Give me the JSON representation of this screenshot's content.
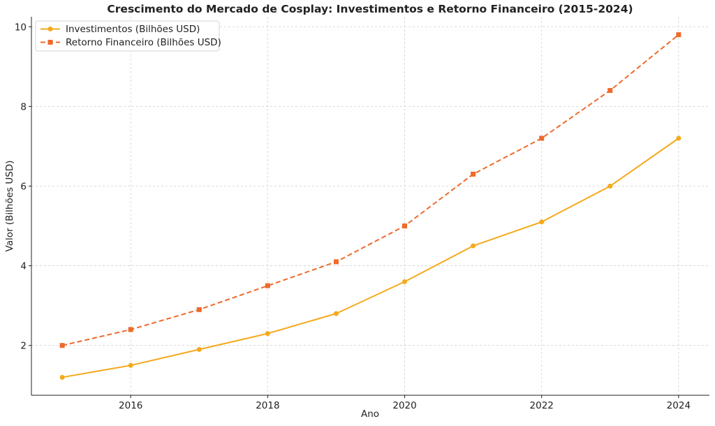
{
  "chart_data": {
    "type": "line",
    "title": "Crescimento do Mercado de Cosplay: Investimentos e Retorno Financeiro (2015-2024)",
    "xlabel": "Ano",
    "ylabel": "Valor (Bilhões USD)",
    "x": [
      2015,
      2016,
      2017,
      2018,
      2019,
      2020,
      2021,
      2022,
      2023,
      2024
    ],
    "xticks": [
      "2016",
      "2018",
      "2020",
      "2022",
      "2024"
    ],
    "yticks": [
      "2",
      "4",
      "6",
      "8",
      "10"
    ],
    "xlim": [
      2014.55,
      2024.45
    ],
    "ylim": [
      0.75,
      10.25
    ],
    "grid": true,
    "legend_position": "top-left",
    "series": [
      {
        "name": "Investimentos (Bilhões USD)",
        "values": [
          1.2,
          1.5,
          1.9,
          2.3,
          2.8,
          3.6,
          4.5,
          5.1,
          6.0,
          7.2
        ],
        "color": "#f5a91b",
        "line_style": "solid",
        "marker": "circle"
      },
      {
        "name": "Retorno Financeiro (Bilhões USD)",
        "values": [
          2.0,
          2.4,
          2.9,
          3.5,
          4.1,
          5.0,
          6.3,
          7.2,
          8.4,
          9.8
        ],
        "color": "#ee6a2b",
        "line_style": "dashed",
        "marker": "square"
      }
    ]
  }
}
